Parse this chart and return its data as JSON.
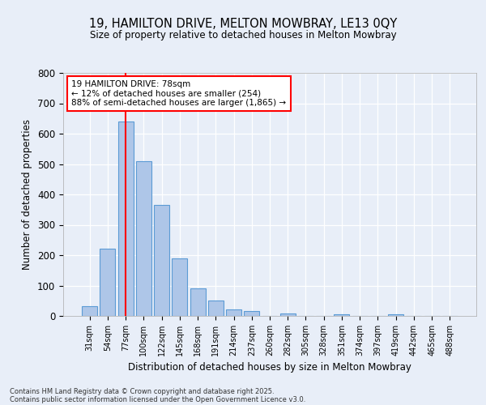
{
  "title1": "19, HAMILTON DRIVE, MELTON MOWBRAY, LE13 0QY",
  "title2": "Size of property relative to detached houses in Melton Mowbray",
  "xlabel": "Distribution of detached houses by size in Melton Mowbray",
  "ylabel": "Number of detached properties",
  "categories": [
    "31sqm",
    "54sqm",
    "77sqm",
    "100sqm",
    "122sqm",
    "145sqm",
    "168sqm",
    "191sqm",
    "214sqm",
    "237sqm",
    "260sqm",
    "282sqm",
    "305sqm",
    "328sqm",
    "351sqm",
    "374sqm",
    "397sqm",
    "419sqm",
    "442sqm",
    "465sqm",
    "488sqm"
  ],
  "values": [
    33,
    222,
    640,
    510,
    365,
    190,
    90,
    52,
    22,
    17,
    0,
    7,
    0,
    0,
    5,
    0,
    0,
    5,
    0,
    0,
    0
  ],
  "bar_color": "#aec6e8",
  "bar_edge_color": "#5b9bd5",
  "vline_x_index": 2,
  "vline_color": "red",
  "annotation_title": "19 HAMILTON DRIVE: 78sqm",
  "annotation_line1": "← 12% of detached houses are smaller (254)",
  "annotation_line2": "88% of semi-detached houses are larger (1,865) →",
  "ylim": [
    0,
    800
  ],
  "yticks": [
    0,
    100,
    200,
    300,
    400,
    500,
    600,
    700,
    800
  ],
  "footer1": "Contains HM Land Registry data © Crown copyright and database right 2025.",
  "footer2": "Contains public sector information licensed under the Open Government Licence v3.0.",
  "bg_color": "#e8eef8"
}
